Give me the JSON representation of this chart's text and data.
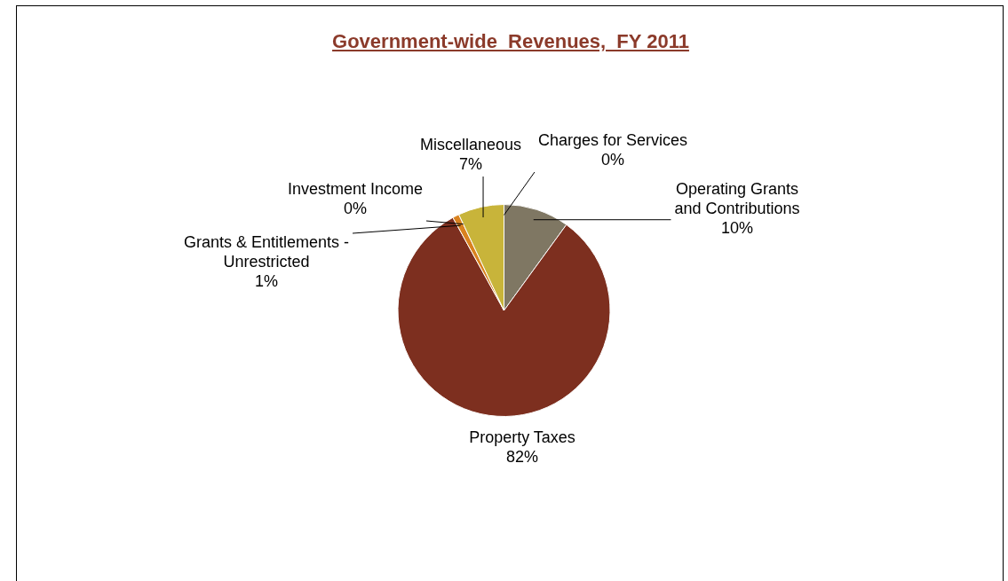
{
  "chart_data": {
    "type": "pie",
    "title": "Government-wide  Revenues,  FY 2011",
    "categories": [
      "Charges for Services",
      "Operating Grants and Contributions",
      "Property Taxes",
      "Grants & Entitlements - Unrestricted",
      "Investment Income",
      "Miscellaneous"
    ],
    "values": [
      0,
      10,
      82,
      1,
      0,
      7
    ],
    "value_labels": [
      "0%",
      "10%",
      "82%",
      "1%",
      "0%",
      "7%"
    ],
    "colors": [
      "#9aa0b0",
      "#7f7763",
      "#7d2f1f",
      "#d9821f",
      "#e6b040",
      "#c8b43a"
    ],
    "legend": false
  }
}
